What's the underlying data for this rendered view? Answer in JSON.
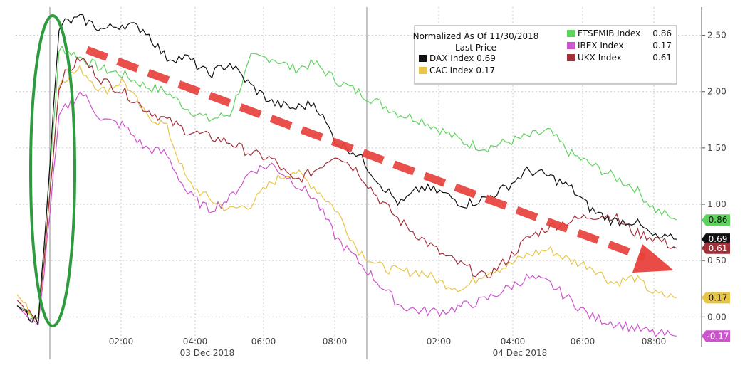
{
  "chart_data": {
    "type": "line",
    "legend": {
      "title_line1": "Normalized As Of 11/30/2018",
      "title_line2": "Last Price",
      "placement": "top-right"
    },
    "x_tick_labels": [
      "02:00",
      "04:00",
      "06:00",
      "08:00",
      "02:00",
      "04:00",
      "06:00",
      "08:00"
    ],
    "date_labels": [
      "03 Dec 2018",
      "04 Dec 2018"
    ],
    "y_axis": {
      "side": "right",
      "ticks": [
        0.0,
        0.5,
        1.0,
        1.5,
        2.0,
        2.5
      ],
      "tick_labels": [
        "0.00",
        "0.50",
        "1.00",
        "1.50",
        "2.00",
        "2.50"
      ],
      "ylim": [
        -0.2,
        2.75
      ]
    },
    "grid": true,
    "series": [
      {
        "name": "DAX Index",
        "last": "0.69",
        "color": "#111111",
        "values": [
          0.1,
          -0.05,
          2.6,
          2.65,
          2.55,
          2.6,
          2.55,
          2.3,
          2.3,
          2.15,
          2.25,
          2.05,
          1.9,
          1.85,
          1.9,
          1.55,
          1.45,
          1.2,
          1.0,
          1.15,
          1.1,
          1.0,
          1.05,
          1.15,
          1.3,
          1.25,
          1.15,
          0.95,
          0.85,
          0.85,
          0.7,
          0.69
        ]
      },
      {
        "name": "CAC Index",
        "last": "0.17",
        "color": "#e8c547",
        "values": [
          0.2,
          -0.05,
          2.1,
          2.2,
          2.0,
          2.1,
          1.8,
          1.7,
          1.2,
          1.05,
          0.95,
          1.0,
          1.2,
          1.3,
          1.15,
          0.95,
          0.6,
          0.45,
          0.4,
          0.4,
          0.3,
          0.25,
          0.4,
          0.45,
          0.55,
          0.6,
          0.5,
          0.45,
          0.3,
          0.35,
          0.2,
          0.17
        ]
      },
      {
        "name": "FTSEMIB Index",
        "last": "0.86",
        "color": "#5fd35f",
        "values": [
          0.1,
          0.0,
          2.4,
          2.3,
          2.2,
          2.15,
          2.05,
          2.0,
          1.85,
          1.75,
          1.8,
          2.3,
          2.3,
          2.2,
          2.25,
          2.1,
          2.0,
          1.9,
          1.8,
          1.75,
          1.65,
          1.55,
          1.5,
          1.55,
          1.6,
          1.65,
          1.45,
          1.35,
          1.25,
          1.15,
          0.95,
          0.86
        ]
      },
      {
        "name": "IBEX Index",
        "last": "-0.17",
        "color": "#cc55cc",
        "values": [
          0.1,
          -0.1,
          1.8,
          2.0,
          1.75,
          1.7,
          1.5,
          1.45,
          1.1,
          0.95,
          1.05,
          1.3,
          1.35,
          1.2,
          1.05,
          0.7,
          0.5,
          0.3,
          0.1,
          0.05,
          0.05,
          0.1,
          0.15,
          0.25,
          0.35,
          0.3,
          0.15,
          0.0,
          -0.05,
          -0.1,
          -0.15,
          -0.17
        ]
      },
      {
        "name": "UKX Index",
        "last": "0.61",
        "color": "#a0303a",
        "values": [
          0.15,
          -0.05,
          2.1,
          2.3,
          2.1,
          2.0,
          1.85,
          1.75,
          1.65,
          1.6,
          1.55,
          1.45,
          1.4,
          1.2,
          1.3,
          1.45,
          1.3,
          1.05,
          0.85,
          0.7,
          0.55,
          0.45,
          0.35,
          0.5,
          0.7,
          0.8,
          0.85,
          0.9,
          0.9,
          0.75,
          0.7,
          0.61
        ]
      }
    ],
    "annotations": [
      {
        "kind": "ellipse-highlight",
        "color": "#2e9b3e"
      },
      {
        "kind": "dashed-arrow",
        "color": "#e8413c"
      }
    ]
  }
}
